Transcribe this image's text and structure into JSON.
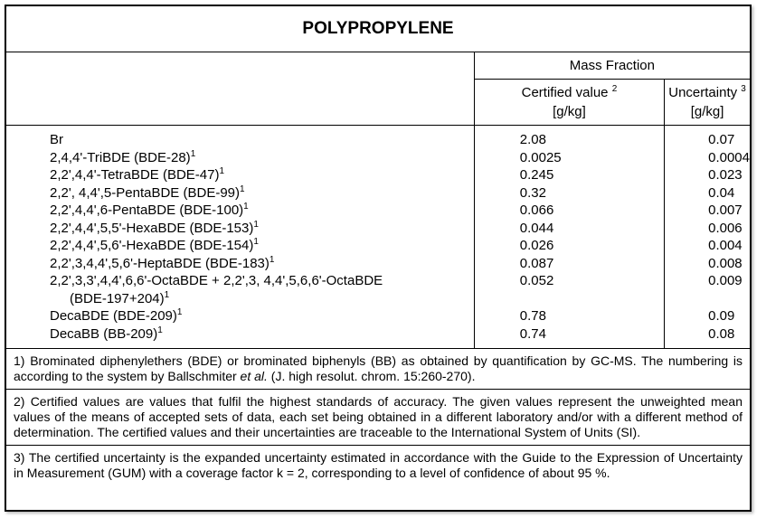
{
  "title": "POLYPROPYLENE",
  "header": {
    "group": "Mass Fraction",
    "columns": [
      {
        "label": "Certified value",
        "note": "2",
        "unit": "[g/kg]"
      },
      {
        "label": "Uncertainty",
        "note": "3",
        "unit": "[g/kg]"
      }
    ]
  },
  "rows": [
    {
      "name": [
        "Br"
      ],
      "certified": "2.08",
      "uncertainty": "0.07"
    },
    {
      "name": [
        "2,4,4'-TriBDE (BDE-28)"
      ],
      "note": "1",
      "certified": "0.0025",
      "uncertainty": "0.0004"
    },
    {
      "name": [
        "2,2',4,4'-TetraBDE (BDE-47)"
      ],
      "note": "1",
      "certified": "0.245",
      "uncertainty": "0.023"
    },
    {
      "name": [
        "2,2', 4,4',5-PentaBDE (BDE-99)"
      ],
      "note": "1",
      "certified": "0.32",
      "uncertainty": "0.04"
    },
    {
      "name": [
        "2,2',4,4',6-PentaBDE (BDE-100)"
      ],
      "note": "1",
      "certified": "0.066",
      "uncertainty": "0.007"
    },
    {
      "name": [
        "2,2',4,4',5,5'-HexaBDE (BDE-153)"
      ],
      "note": "1",
      "certified": "0.044",
      "uncertainty": "0.006"
    },
    {
      "name": [
        "2,2',4,4',5,6'-HexaBDE (BDE-154)"
      ],
      "note": "1",
      "certified": "0.026",
      "uncertainty": "0.004"
    },
    {
      "name": [
        "2,2',3,4,4',5,6'-HeptaBDE (BDE-183)"
      ],
      "note": "1",
      "certified": "0.087",
      "uncertainty": "0.008"
    },
    {
      "name": [
        "2,2',3,3',4,4',6,6'-OctaBDE + 2,2',3, 4,4',5,6,6'-OctaBDE",
        "(BDE-197+204)"
      ],
      "note": "1",
      "certified": "0.052",
      "uncertainty": "0.009"
    },
    {
      "name": [
        "DecaBDE (BDE-209)"
      ],
      "note": "1",
      "certified": "0.78",
      "uncertainty": "0.09"
    },
    {
      "name": [
        "DecaBB (BB-209)"
      ],
      "note": "1",
      "certified": "0.74",
      "uncertainty": "0.08"
    }
  ],
  "footnotes": [
    {
      "parts": [
        {
          "text": "1) Brominated diphenylethers (BDE) or brominated biphenyls (BB) as obtained by quantification by GC-MS. The numbering is according to the system by Ballschmiter "
        },
        {
          "text": "et al.",
          "italic": true
        },
        {
          "text": " (J. high resolut. chrom. 15:260-270)."
        }
      ]
    },
    {
      "parts": [
        {
          "text": "2) Certified values are values that fulfil the highest standards of accuracy. The given values represent the unweighted mean values of the means of accepted sets of data, each set being obtained in a different laboratory and/or with a different method of determination. The certified values and their uncertainties are traceable to the International System of Units (SI)."
        }
      ]
    },
    {
      "parts": [
        {
          "text": "3) The certified uncertainty is the expanded uncertainty estimated in accordance with the Guide to the Expression of Uncertainty in Measurement (GUM) with a coverage factor k = 2, corresponding to a level of confidence of about 95 %."
        }
      ]
    }
  ]
}
